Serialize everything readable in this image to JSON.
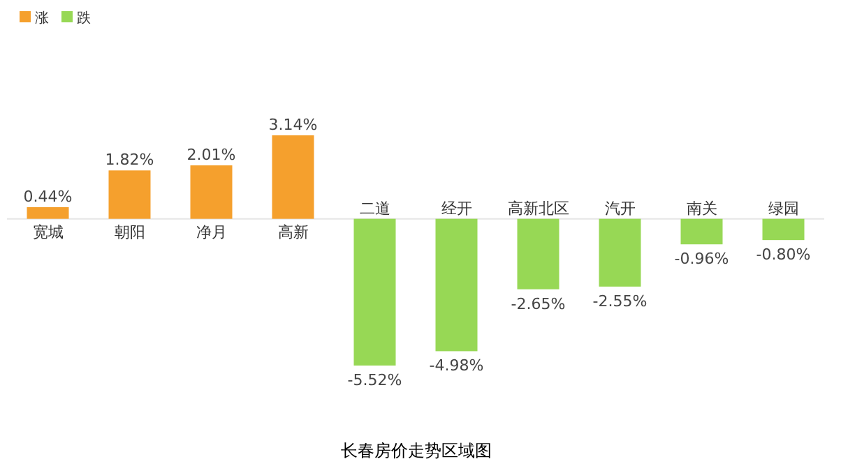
{
  "chart_data": {
    "type": "bar",
    "title": "长春房价走势区域图",
    "categories": [
      "宽城",
      "朝阳",
      "净月",
      "高新",
      "二道",
      "经开",
      "高新北区",
      "汽开",
      "南关",
      "绿园"
    ],
    "series": [
      {
        "name": "涨",
        "color": "#f5a02d",
        "values": [
          0.44,
          1.82,
          2.01,
          3.14,
          null,
          null,
          null,
          null,
          null,
          null
        ],
        "value_labels": [
          "0.44%",
          "1.82%",
          "2.01%",
          "3.14%",
          null,
          null,
          null,
          null,
          null,
          null
        ]
      },
      {
        "name": "跌",
        "color": "#97d855",
        "values": [
          null,
          null,
          null,
          null,
          -5.52,
          -4.98,
          -2.65,
          -2.55,
          -0.96,
          -0.8
        ],
        "value_labels": [
          null,
          null,
          null,
          null,
          "-5.52%",
          "-4.98%",
          "-2.65%",
          "-2.55%",
          "-0.96%",
          "-0.80%"
        ]
      }
    ],
    "stacked": true,
    "legend": "top left"
  }
}
